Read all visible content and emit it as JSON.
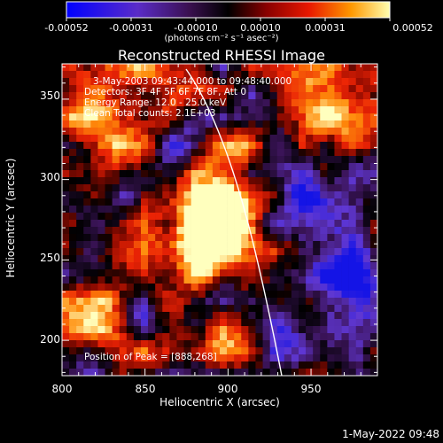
{
  "plot": {
    "title": "Reconstructed RHESSI Image",
    "colorbar": {
      "ticks": [
        "-0.00052",
        "-0.00031",
        "-0.00010",
        "0.00010",
        "0.00031",
        "0.00052"
      ],
      "unit": "(photons cm⁻² s⁻¹ asec⁻²)"
    },
    "annotations": {
      "time": "3-May-2003 09:43:44.000 to 09:48:40.000",
      "detectors": "Detectors: 3F 4F 5F 6F 7F 8F, Att 0",
      "energy": "Energy Range: 12.0 - 25.0 keV",
      "clean": "Clean     Total counts: 2.1E+03",
      "peak": "Position of Peak = [888,268]"
    },
    "x_ticks": [
      "800",
      "850",
      "900",
      "950"
    ],
    "y_ticks": [
      "350",
      "300",
      "250",
      "200"
    ],
    "xlabel": "Heliocentric X (arcsec)",
    "ylabel": "Heliocentric Y (arcsec)"
  },
  "footer": {
    "date": "1-May-2022 09:48"
  },
  "chart_data": {
    "type": "heatmap",
    "title": "Reconstructed RHESSI Image",
    "xlabel": "Heliocentric X (arcsec)",
    "ylabel": "Heliocentric Y (arcsec)",
    "xlim": [
      800,
      990
    ],
    "ylim": [
      178,
      372
    ],
    "colorbar_range": [
      -0.00052,
      0.00052
    ],
    "peak": {
      "x": 888,
      "y": 268
    },
    "time_range": "3-May-2003 09:43:44.000 to 09:48:40.000",
    "energy_range_kev": [
      12.0,
      25.0
    ],
    "total_counts": 2100
  }
}
